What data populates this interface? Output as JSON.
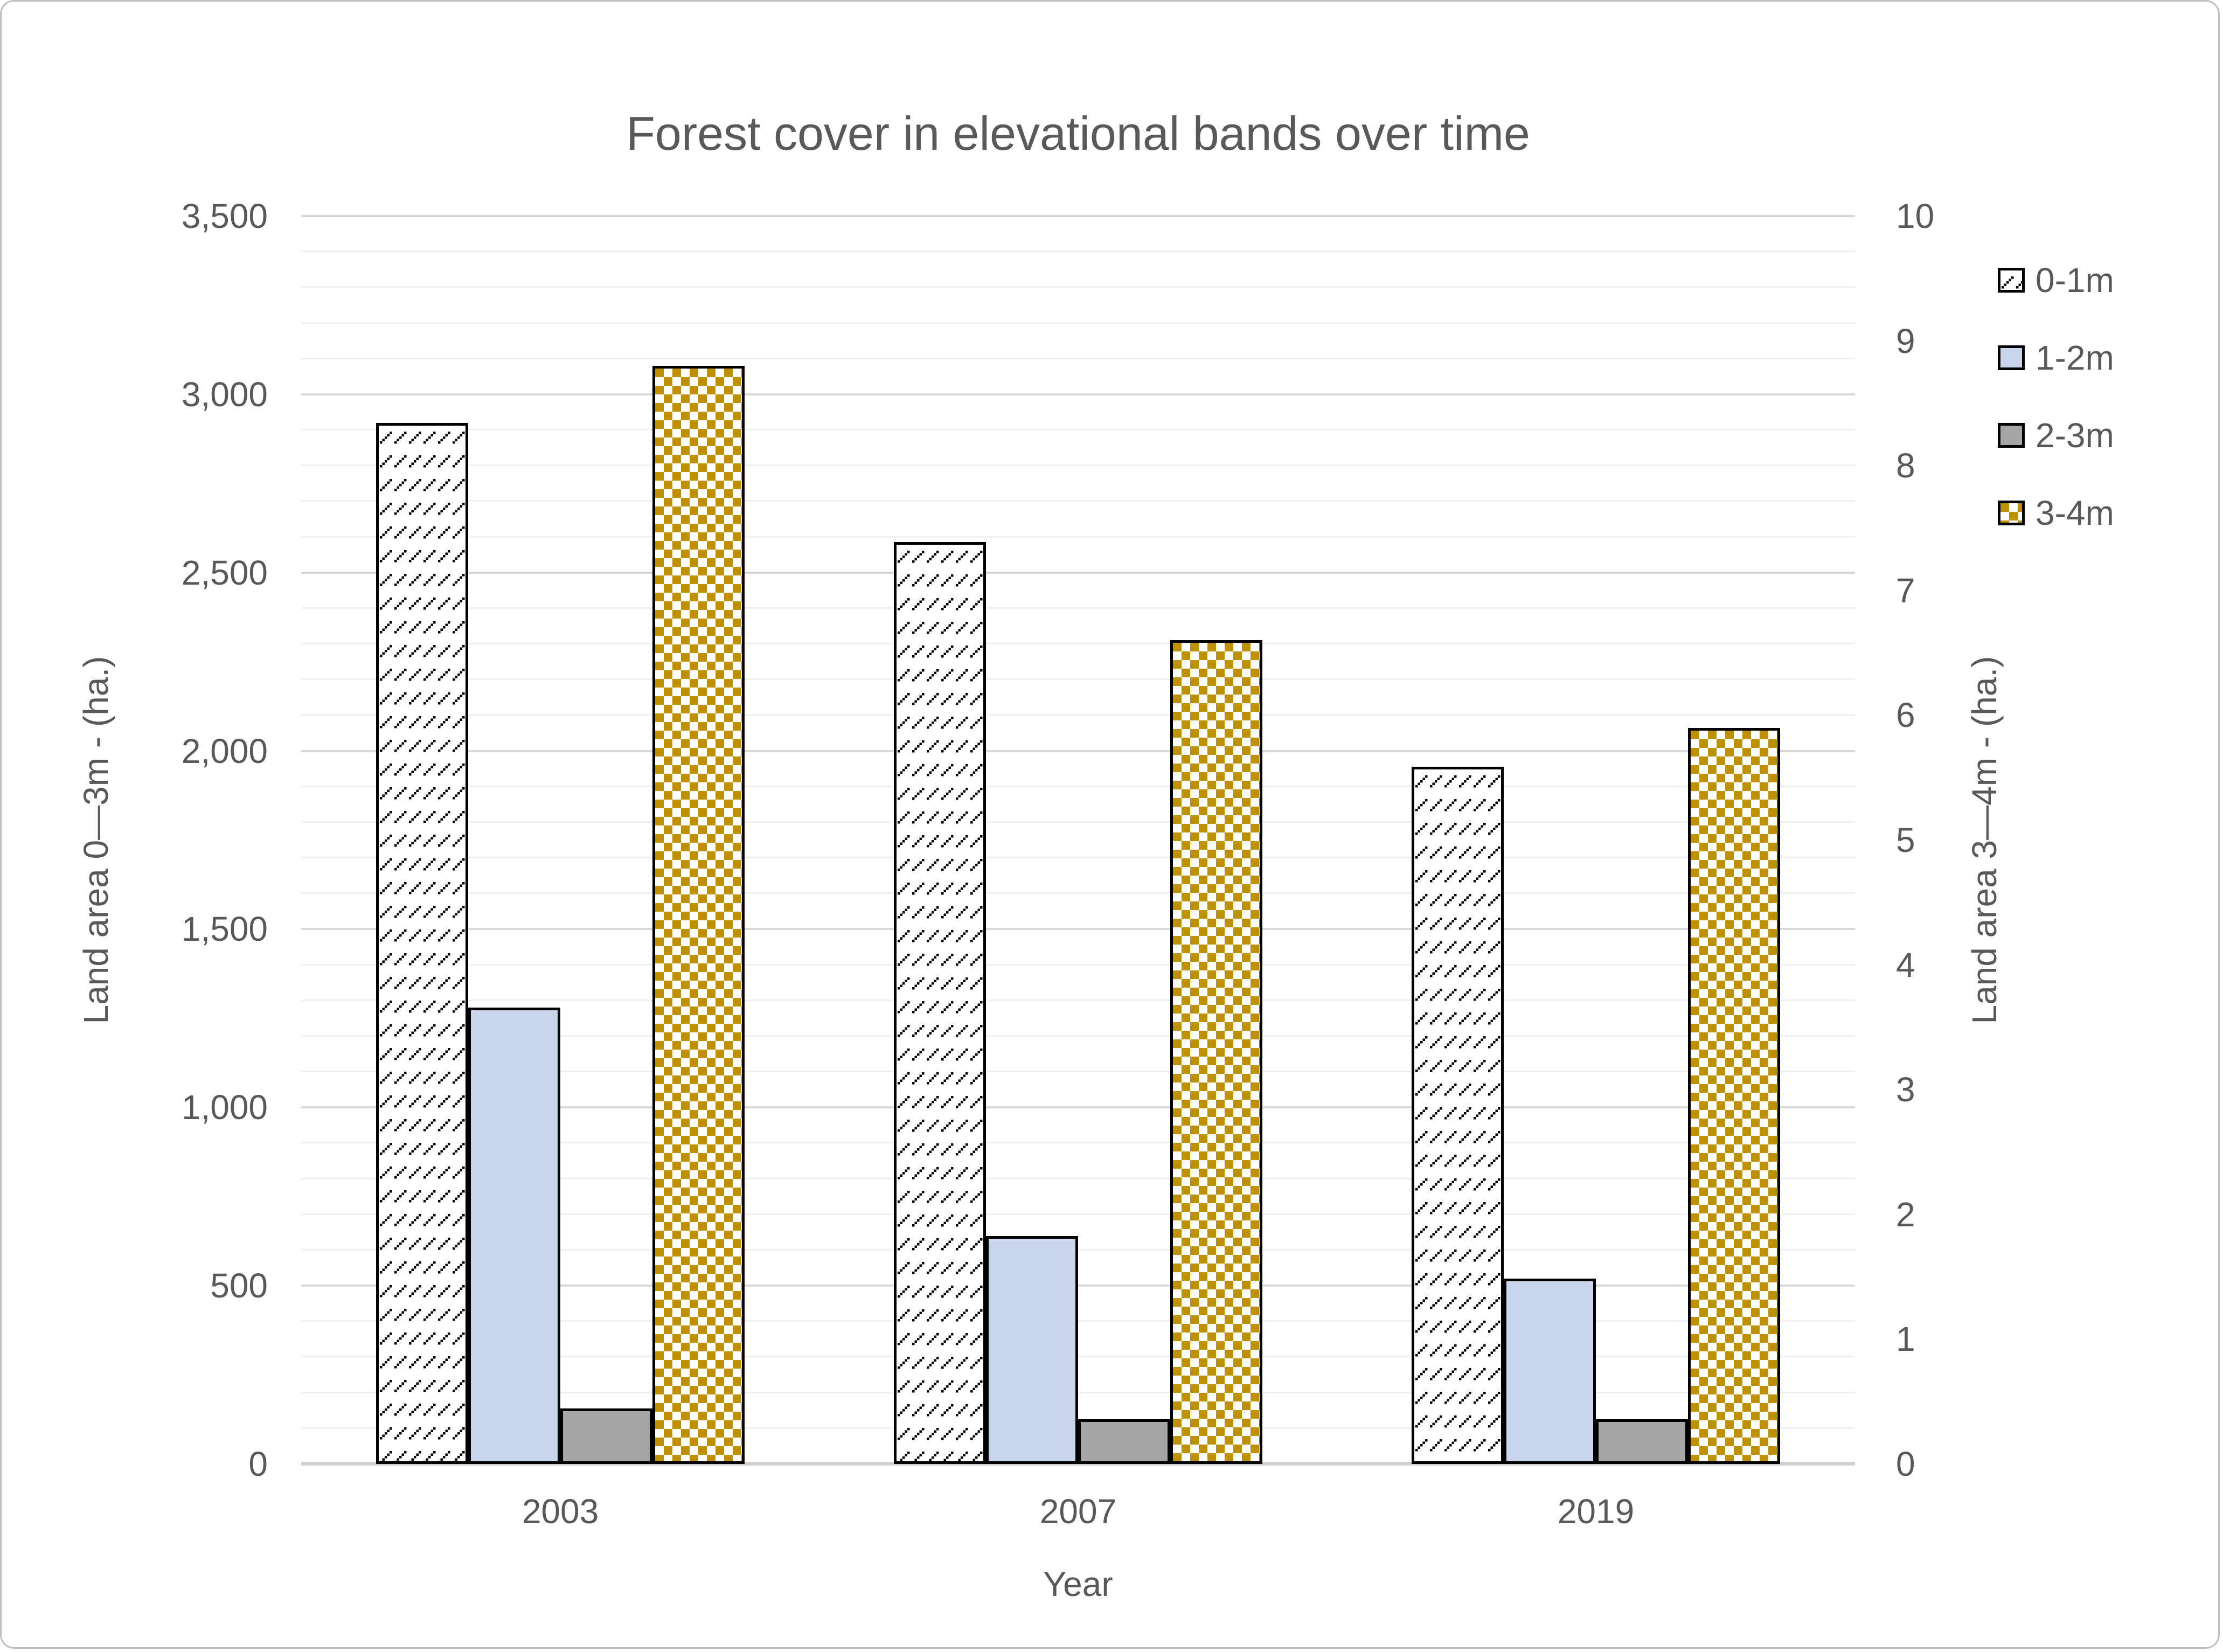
{
  "chart_data": {
    "type": "bar",
    "title": "Forest cover in elevational bands over time",
    "xlabel": "Year",
    "ylabel_left": "Land area 0—3m - (ha.)",
    "ylabel_right": "Land area 3—4m - (ha.)",
    "categories": [
      "2003",
      "2007",
      "2019"
    ],
    "series": [
      {
        "name": "0-1m",
        "axis": "left",
        "style": "diagonal-hatch",
        "color": "#000000",
        "values": [
          2920,
          2585,
          1955
        ]
      },
      {
        "name": "1-2m",
        "axis": "left",
        "style": "solid",
        "color": "#CBD5EC",
        "values": [
          1280,
          640,
          520
        ]
      },
      {
        "name": "2-3m",
        "axis": "left",
        "style": "solid",
        "color": "#A5A5A5",
        "values": [
          155,
          125,
          125
        ]
      },
      {
        "name": "3-4m",
        "axis": "right",
        "style": "checker",
        "color": "#BF9000",
        "values": [
          8.8,
          6.6,
          5.9
        ]
      }
    ],
    "left_axis": {
      "min": 0,
      "max": 3500,
      "major_step": 500,
      "minor_step": 100,
      "tick_labels": [
        "0",
        "500",
        "1,000",
        "1,500",
        "2,000",
        "2,500",
        "3,000",
        "3,500"
      ]
    },
    "right_axis": {
      "min": 0,
      "max": 10,
      "major_step": 1,
      "tick_labels": [
        "0",
        "1",
        "2",
        "3",
        "4",
        "5",
        "6",
        "7",
        "8",
        "9",
        "10"
      ]
    },
    "legend_position": "right",
    "grid": true
  },
  "colors": {
    "text": "#595959",
    "grid_minor": "#EFEFEF",
    "grid_major": "#D9D9D9",
    "axis_line": "#D0D0D0",
    "chart_border": "#BFBFBF",
    "bar_border": "#000000",
    "pattern_white": "#FFFFFF"
  }
}
